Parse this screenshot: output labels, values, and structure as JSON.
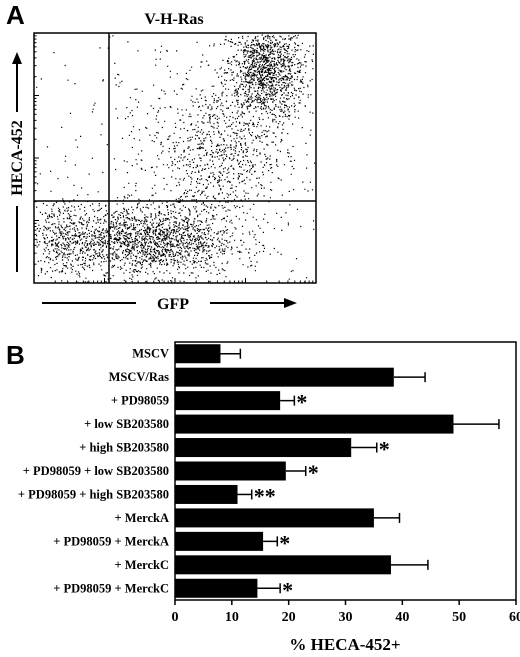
{
  "panel_a": {
    "letter": "A",
    "title": "V-H-Ras",
    "ylabel": "HECA-452",
    "xlabel": "GFP"
  },
  "panel_b": {
    "letter": "B"
  },
  "chart_data": [
    {
      "type": "scatter",
      "title": "V-H-Ras",
      "xlabel": "GFP",
      "ylabel": "HECA-452",
      "log_scale": true,
      "quadrant_gates": true,
      "clusters": [
        {
          "name": "",
          "center": [
            0.82,
            0.85
          ],
          "spread": [
            0.07,
            0.1
          ],
          "count": 1300
        },
        {
          "name": "",
          "center": [
            0.65,
            0.52
          ],
          "spread": [
            0.12,
            0.14
          ],
          "count": 700
        },
        {
          "name": "",
          "center": [
            0.4,
            0.17
          ],
          "spread": [
            0.16,
            0.07
          ],
          "count": 1700
        },
        {
          "name": "",
          "center": [
            0.1,
            0.18
          ],
          "spread": [
            0.05,
            0.08
          ],
          "count": 300
        },
        {
          "name": "",
          "center": [
            0.55,
            0.5
          ],
          "spread": [
            0.32,
            0.3
          ],
          "count": 500
        }
      ]
    },
    {
      "type": "bar",
      "orientation": "horizontal",
      "xlabel": "% HECA-452+",
      "xlim": [
        0,
        60
      ],
      "xticks": [
        "0",
        "10",
        "20",
        "30",
        "40",
        "50",
        "60"
      ],
      "categories": [
        "MSCV",
        "MSCV/Ras",
        "+ PD98059",
        "+ low SB203580",
        "+ high SB203580",
        "+ PD98059 + low SB203580",
        "+ PD98059 + high SB203580",
        "+ MerckA",
        "+ PD98059 + MerckA",
        "+ MerckC",
        "+ PD98059 + MerckC"
      ],
      "values": [
        8,
        38.5,
        18.5,
        49,
        31,
        19.5,
        11,
        35,
        15.5,
        38,
        14.5
      ],
      "errors": [
        3.5,
        5.5,
        2.5,
        8,
        4.5,
        3.5,
        2.5,
        4.5,
        2.5,
        6.5,
        4
      ],
      "annotations": [
        "",
        "",
        "*",
        "",
        "*",
        "*",
        "**",
        "",
        "*",
        "",
        "*"
      ]
    }
  ]
}
